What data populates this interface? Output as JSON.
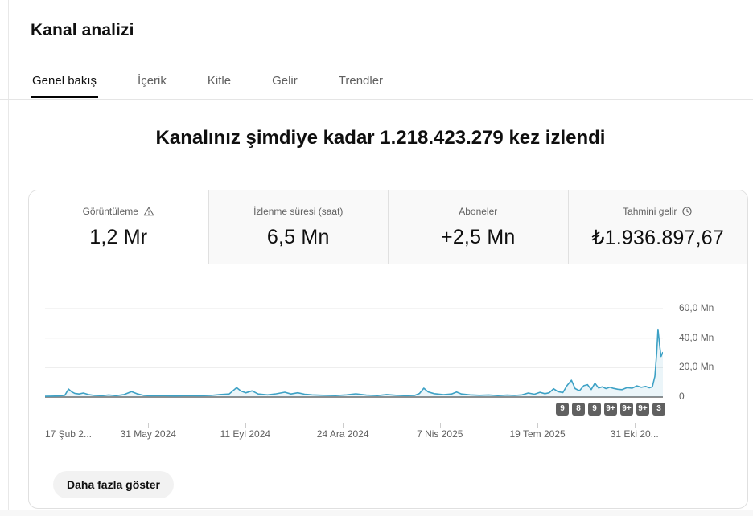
{
  "page": {
    "title": "Kanal analizi"
  },
  "tabs": [
    {
      "label": "Genel bakış",
      "active": true
    },
    {
      "label": "İçerik",
      "active": false
    },
    {
      "label": "Kitle",
      "active": false
    },
    {
      "label": "Gelir",
      "active": false
    },
    {
      "label": "Trendler",
      "active": false
    }
  ],
  "headline": "Kanalınız şimdiye kadar 1.218.423.279 kez izlendi",
  "metrics": [
    {
      "label": "Görüntüleme",
      "value": "1,2 Mr",
      "icon": "warning-icon",
      "active": true
    },
    {
      "label": "İzlenme süresi (saat)",
      "value": "6,5 Mn",
      "icon": null,
      "active": false
    },
    {
      "label": "Aboneler",
      "value": "+2,5 Mn",
      "icon": null,
      "active": false
    },
    {
      "label": "Tahmini gelir",
      "value": "₺1.936.897,67",
      "icon": "clock-icon",
      "active": false
    }
  ],
  "show_more_label": "Daha fazla göster",
  "chart_data": {
    "type": "line",
    "title": "Görüntüleme (views) over time",
    "unit": "Mn (millions of views)",
    "line_color": "#3da1c5",
    "fill_color": "rgba(61,161,197,0.10)",
    "grid": true,
    "ylim": [
      0,
      64.4
    ],
    "y_ticks": [
      {
        "v": 60,
        "label": "60,0 Mn"
      },
      {
        "v": 40,
        "label": "40,0 Mn"
      },
      {
        "v": 20,
        "label": "20,0 Mn"
      },
      {
        "v": 0,
        "label": "0"
      }
    ],
    "x_ticks": [
      {
        "fx": 0.009,
        "label": "17 Şub 2..."
      },
      {
        "fx": 0.167,
        "label": "31 May 2024"
      },
      {
        "fx": 0.324,
        "label": "11 Eyl 2024"
      },
      {
        "fx": 0.482,
        "label": "24 Ara 2024"
      },
      {
        "fx": 0.639,
        "label": "7 Nis 2025"
      },
      {
        "fx": 0.797,
        "label": "19 Tem 2025"
      },
      {
        "fx": 0.954,
        "label": "31 Eki 20..."
      }
    ],
    "badges": [
      "9",
      "8",
      "9",
      "9+",
      "9+",
      "9+",
      "3"
    ],
    "points": [
      [
        0.0,
        0.5
      ],
      [
        0.01,
        0.6
      ],
      [
        0.022,
        0.7
      ],
      [
        0.032,
        1.2
      ],
      [
        0.038,
        5.4
      ],
      [
        0.043,
        3.6
      ],
      [
        0.048,
        2.5
      ],
      [
        0.055,
        2.1
      ],
      [
        0.062,
        2.7
      ],
      [
        0.07,
        1.7
      ],
      [
        0.08,
        1.1
      ],
      [
        0.092,
        0.9
      ],
      [
        0.103,
        1.4
      ],
      [
        0.115,
        0.9
      ],
      [
        0.128,
        1.7
      ],
      [
        0.14,
        3.7
      ],
      [
        0.15,
        2.1
      ],
      [
        0.16,
        1.1
      ],
      [
        0.172,
        0.8
      ],
      [
        0.19,
        1.0
      ],
      [
        0.21,
        0.7
      ],
      [
        0.228,
        1.0
      ],
      [
        0.248,
        0.8
      ],
      [
        0.268,
        1.1
      ],
      [
        0.283,
        1.7
      ],
      [
        0.298,
        2.1
      ],
      [
        0.31,
        6.4
      ],
      [
        0.317,
        4.1
      ],
      [
        0.325,
        2.9
      ],
      [
        0.335,
        4.2
      ],
      [
        0.345,
        2.1
      ],
      [
        0.36,
        1.5
      ],
      [
        0.374,
        2.2
      ],
      [
        0.388,
        3.3
      ],
      [
        0.398,
        2.1
      ],
      [
        0.409,
        2.9
      ],
      [
        0.42,
        1.9
      ],
      [
        0.432,
        1.5
      ],
      [
        0.45,
        1.2
      ],
      [
        0.47,
        1.0
      ],
      [
        0.488,
        1.5
      ],
      [
        0.503,
        2.2
      ],
      [
        0.52,
        1.3
      ],
      [
        0.538,
        1.0
      ],
      [
        0.553,
        1.7
      ],
      [
        0.568,
        1.2
      ],
      [
        0.585,
        0.9
      ],
      [
        0.598,
        1.1
      ],
      [
        0.606,
        2.4
      ],
      [
        0.613,
        6.0
      ],
      [
        0.62,
        3.5
      ],
      [
        0.63,
        2.3
      ],
      [
        0.645,
        1.6
      ],
      [
        0.658,
        2.1
      ],
      [
        0.666,
        3.4
      ],
      [
        0.674,
        2.1
      ],
      [
        0.688,
        1.5
      ],
      [
        0.703,
        1.2
      ],
      [
        0.718,
        1.4
      ],
      [
        0.733,
        1.0
      ],
      [
        0.748,
        1.3
      ],
      [
        0.76,
        1.1
      ],
      [
        0.772,
        1.5
      ],
      [
        0.782,
        2.7
      ],
      [
        0.792,
        1.9
      ],
      [
        0.801,
        3.2
      ],
      [
        0.809,
        2.3
      ],
      [
        0.816,
        2.9
      ],
      [
        0.823,
        5.6
      ],
      [
        0.83,
        3.7
      ],
      [
        0.838,
        3.0
      ],
      [
        0.845,
        7.9
      ],
      [
        0.852,
        11.4
      ],
      [
        0.858,
        5.7
      ],
      [
        0.865,
        4.3
      ],
      [
        0.872,
        7.7
      ],
      [
        0.878,
        8.4
      ],
      [
        0.884,
        5.1
      ],
      [
        0.89,
        9.4
      ],
      [
        0.896,
        6.1
      ],
      [
        0.902,
        6.9
      ],
      [
        0.908,
        5.7
      ],
      [
        0.914,
        6.7
      ],
      [
        0.92,
        5.9
      ],
      [
        0.927,
        5.3
      ],
      [
        0.934,
        5.0
      ],
      [
        0.942,
        6.4
      ],
      [
        0.95,
        6.0
      ],
      [
        0.958,
        7.6
      ],
      [
        0.965,
        6.6
      ],
      [
        0.972,
        7.2
      ],
      [
        0.978,
        6.3
      ],
      [
        0.983,
        7.0
      ],
      [
        0.987,
        14.0
      ],
      [
        0.99,
        30.0
      ],
      [
        0.992,
        46.0
      ],
      [
        0.995,
        34.0
      ],
      [
        0.997,
        27.5
      ],
      [
        1.0,
        30.5
      ]
    ]
  }
}
